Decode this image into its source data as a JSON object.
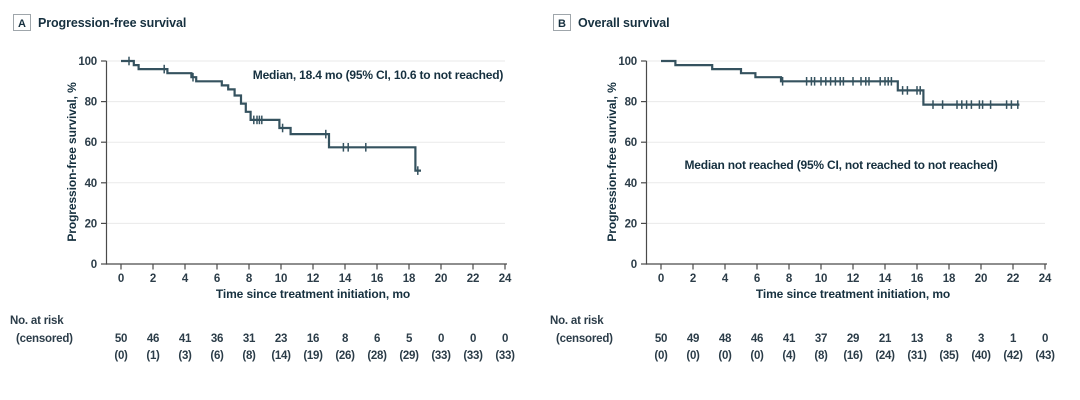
{
  "colors": {
    "curve": "#35525F",
    "grid": "#EAEAEA",
    "axis": "#4A4A4A",
    "text_dark": "#16303F",
    "text_tick": "#2C3D49"
  },
  "chart_data": [
    {
      "type": "line",
      "subtype": "kaplan-meier-step",
      "panel_label": "A",
      "title": "Progression-free survival",
      "annotation": {
        "text": "Median, 18.4 mo (95% CI, 10.6 to not reached)",
        "x": 378,
        "y": 79
      },
      "xlabel": "Time since treatment initiation, mo",
      "ylabel": "Progression-free survival, %",
      "xlim": [
        0,
        24
      ],
      "ylim": [
        0,
        100
      ],
      "x_ticks": [
        0,
        2,
        4,
        6,
        8,
        10,
        12,
        14,
        16,
        18,
        20,
        22,
        24
      ],
      "y_ticks": [
        0,
        20,
        40,
        60,
        80,
        100
      ],
      "grid": "horizontal",
      "legend": "none",
      "steps": [
        [
          0,
          100
        ],
        [
          0.8,
          98
        ],
        [
          1.1,
          96
        ],
        [
          2.9,
          94
        ],
        [
          4.4,
          92
        ],
        [
          4.7,
          90
        ],
        [
          6.3,
          88
        ],
        [
          6.7,
          86
        ],
        [
          7.1,
          83
        ],
        [
          7.5,
          79
        ],
        [
          7.8,
          75
        ],
        [
          8.1,
          71
        ],
        [
          9.9,
          67
        ],
        [
          10.6,
          64
        ],
        [
          13.0,
          57.5
        ],
        [
          18.4,
          46
        ]
      ],
      "end_time": 18.75,
      "censor_marks": [
        [
          0.5,
          100
        ],
        [
          2.7,
          96
        ],
        [
          4.5,
          92
        ],
        [
          8.3,
          71
        ],
        [
          8.5,
          71
        ],
        [
          8.65,
          71
        ],
        [
          8.8,
          71
        ],
        [
          10.1,
          67
        ],
        [
          12.8,
          64
        ],
        [
          13.9,
          57.5
        ],
        [
          14.2,
          57.5
        ],
        [
          15.3,
          57.5
        ],
        [
          18.55,
          46
        ]
      ],
      "risk_label1": "No. at risk",
      "risk_label2": "(censored)",
      "risk_times": [
        0,
        2,
        4,
        6,
        8,
        10,
        12,
        14,
        16,
        18,
        20,
        22,
        24
      ],
      "at_risk": [
        50,
        46,
        41,
        36,
        31,
        23,
        16,
        8,
        6,
        5,
        0,
        0,
        0
      ],
      "censored": [
        0,
        1,
        3,
        6,
        8,
        14,
        19,
        26,
        28,
        29,
        33,
        33,
        33
      ]
    },
    {
      "type": "line",
      "subtype": "kaplan-meier-step",
      "panel_label": "B",
      "title": "Overall survival",
      "annotation": {
        "text": "Median not reached (95% CI, not reached to not reached)",
        "x": 301,
        "y": 169
      },
      "xlabel": "Time since treatment initiation, mo",
      "ylabel": "Progression-free survival, %",
      "xlim": [
        0,
        24
      ],
      "ylim": [
        0,
        100
      ],
      "x_ticks": [
        0,
        2,
        4,
        6,
        8,
        10,
        12,
        14,
        16,
        18,
        20,
        22,
        24
      ],
      "y_ticks": [
        0,
        20,
        40,
        60,
        80,
        100
      ],
      "grid": "horizontal",
      "legend": "none",
      "steps": [
        [
          0,
          100
        ],
        [
          0.9,
          98
        ],
        [
          3.2,
          96
        ],
        [
          5.0,
          94
        ],
        [
          5.9,
          92
        ],
        [
          7.5,
          90
        ],
        [
          14.8,
          85.5
        ],
        [
          16.4,
          78.5
        ]
      ],
      "end_time": 22.4,
      "censor_marks": [
        [
          7.6,
          90
        ],
        [
          9.1,
          90
        ],
        [
          9.4,
          90
        ],
        [
          9.6,
          90
        ],
        [
          10.0,
          90
        ],
        [
          10.3,
          90
        ],
        [
          10.6,
          90
        ],
        [
          10.9,
          90
        ],
        [
          11.2,
          90
        ],
        [
          11.4,
          90
        ],
        [
          12.0,
          90
        ],
        [
          12.5,
          90
        ],
        [
          12.8,
          90
        ],
        [
          13.0,
          90
        ],
        [
          13.7,
          90
        ],
        [
          14.0,
          90
        ],
        [
          14.2,
          90
        ],
        [
          14.4,
          90
        ],
        [
          15.1,
          85.5
        ],
        [
          15.4,
          85.5
        ],
        [
          16.0,
          85.5
        ],
        [
          16.2,
          85.5
        ],
        [
          17.0,
          78.5
        ],
        [
          17.6,
          78.5
        ],
        [
          18.5,
          78.5
        ],
        [
          18.8,
          78.5
        ],
        [
          19.1,
          78.5
        ],
        [
          19.4,
          78.5
        ],
        [
          19.9,
          78.5
        ],
        [
          20.1,
          78.5
        ],
        [
          20.6,
          78.5
        ],
        [
          21.6,
          78.5
        ],
        [
          21.9,
          78.5
        ],
        [
          22.3,
          78.5
        ]
      ],
      "risk_label1": "No. at risk",
      "risk_label2": "(censored)",
      "risk_times": [
        0,
        2,
        4,
        6,
        8,
        10,
        12,
        14,
        16,
        18,
        20,
        22,
        24
      ],
      "at_risk": [
        50,
        49,
        48,
        46,
        41,
        37,
        29,
        21,
        13,
        8,
        3,
        1,
        0
      ],
      "censored": [
        0,
        0,
        0,
        0,
        4,
        8,
        16,
        24,
        31,
        35,
        40,
        42,
        43
      ]
    }
  ]
}
